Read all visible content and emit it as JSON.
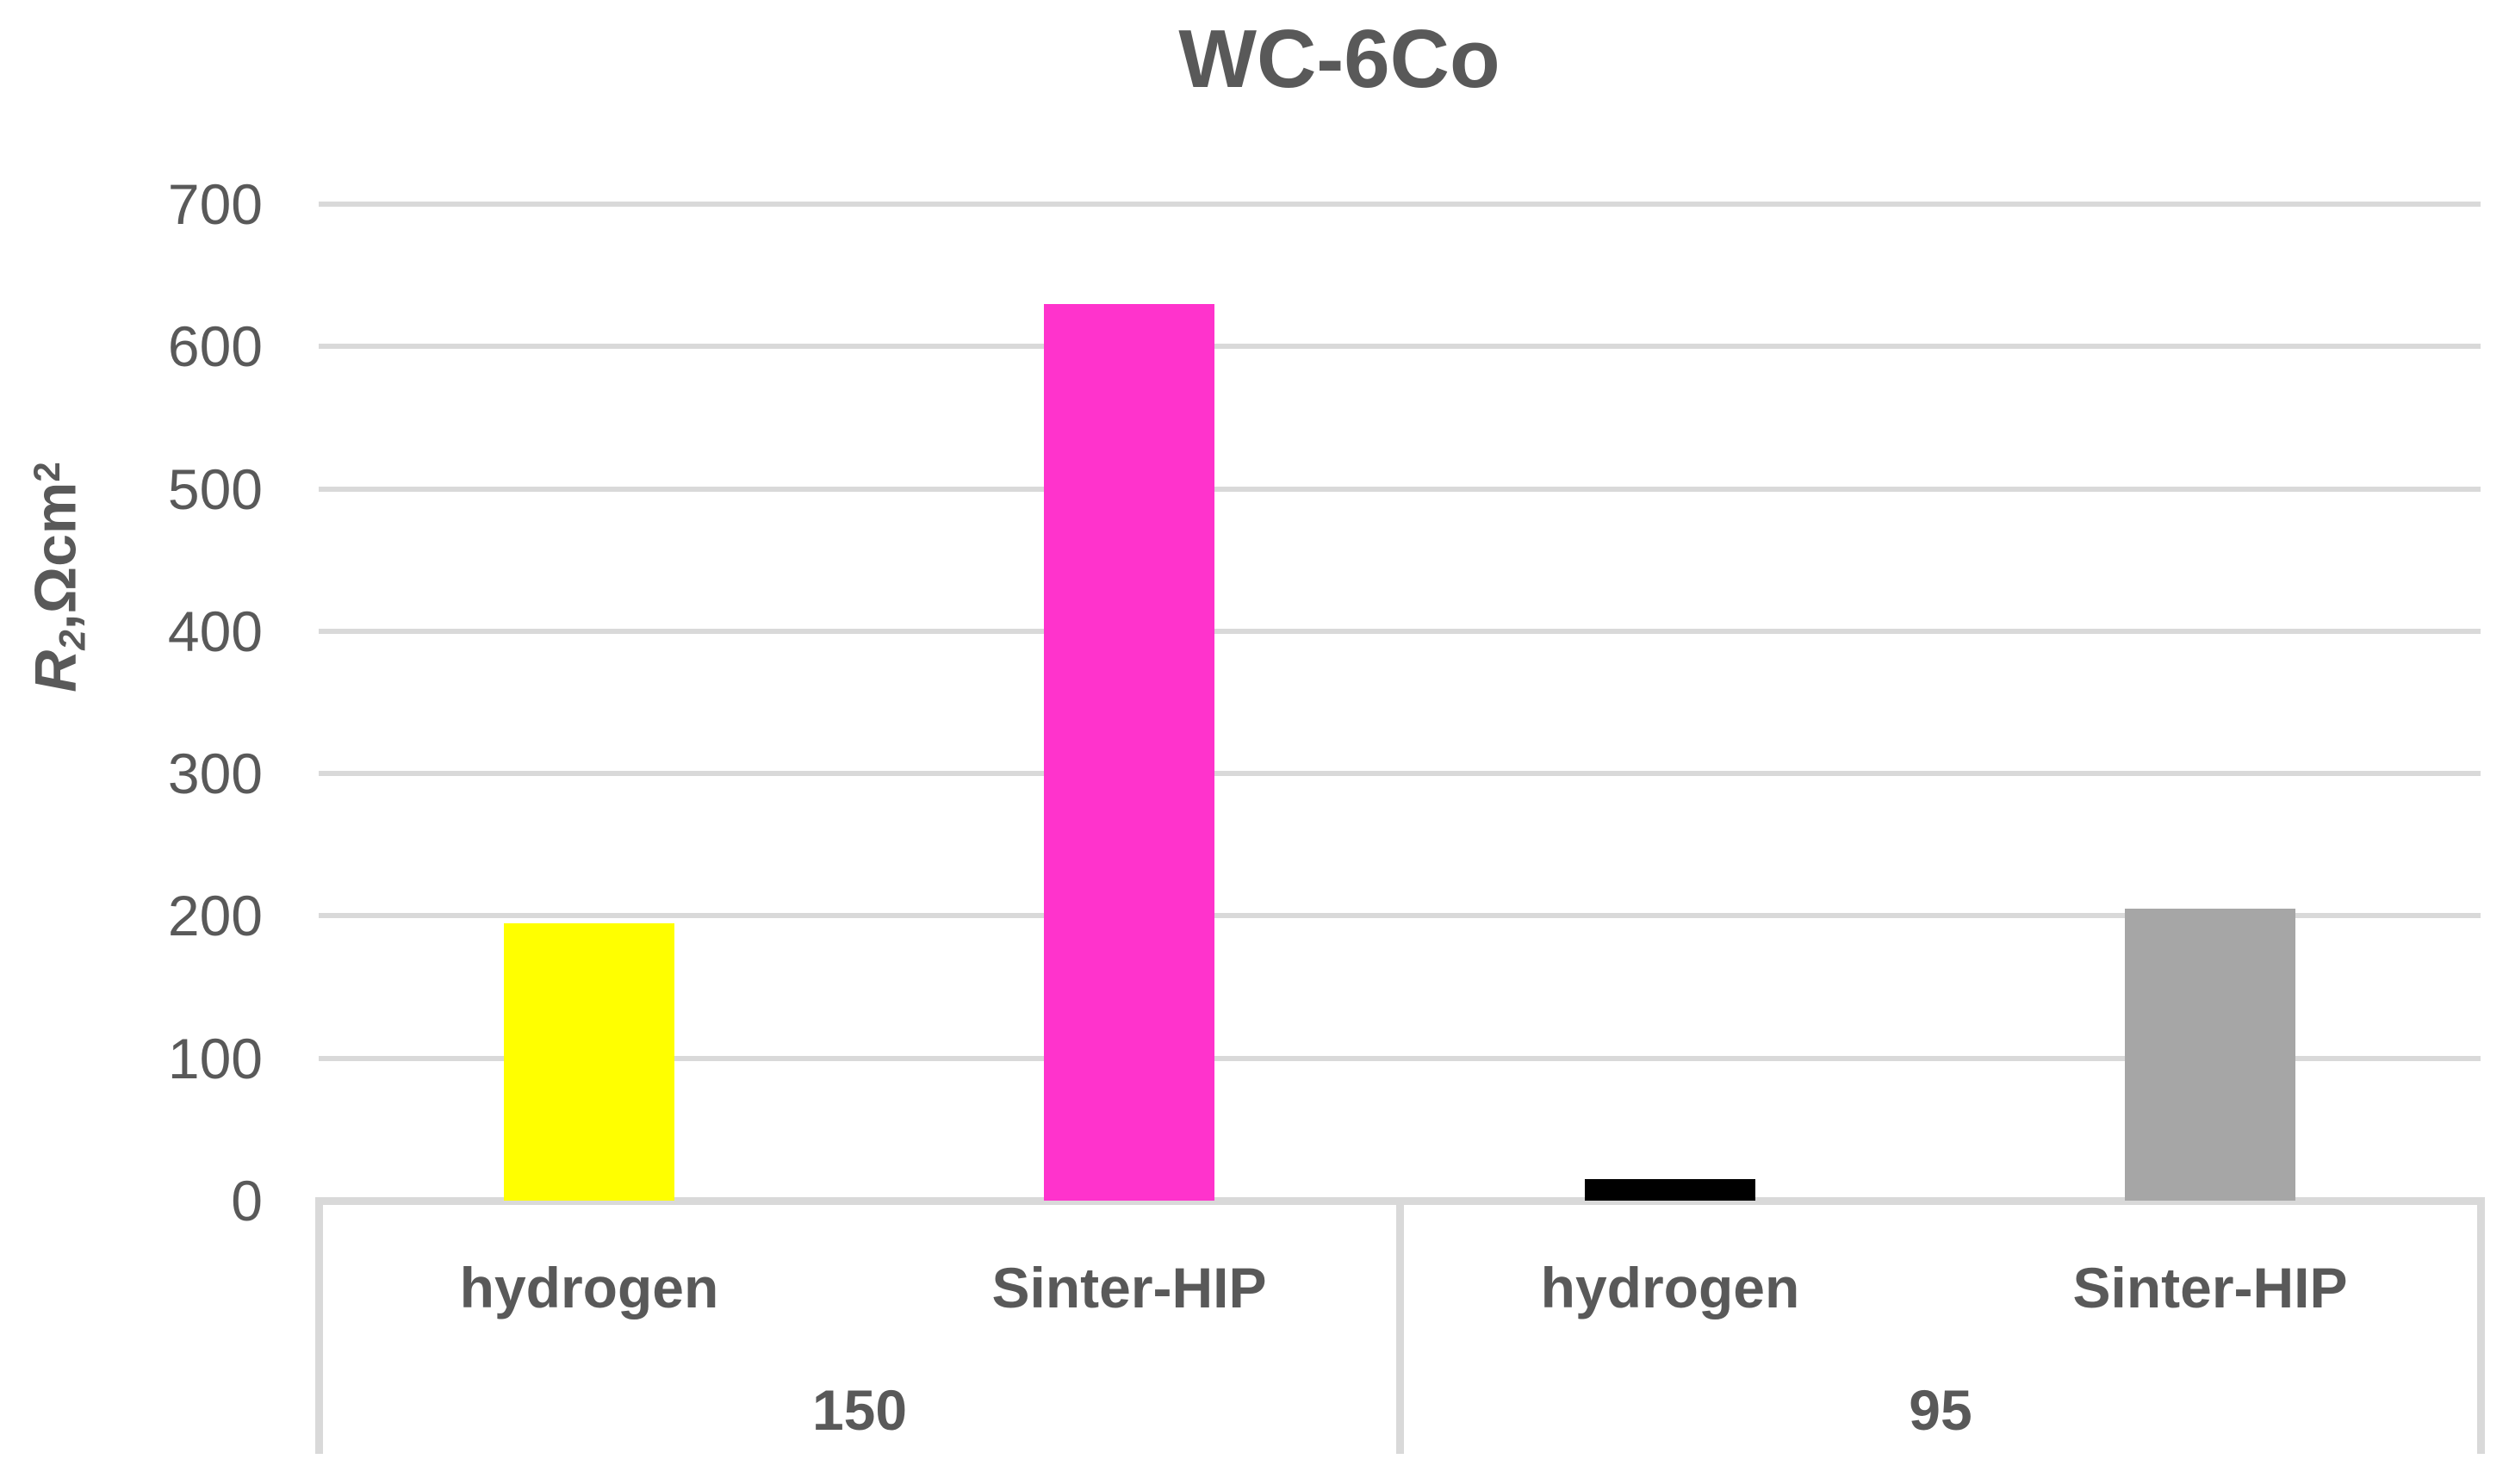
{
  "chart_data": {
    "type": "bar",
    "title": "WC-6Co",
    "ylabel": "R₂,Ωcm²",
    "ylabel_parts": {
      "base": "R",
      "sub": "2",
      "mid": ",Ωcm",
      "sup": "2"
    },
    "xlabel": "",
    "ylim": [
      0,
      700
    ],
    "yticks": [
      0,
      100,
      200,
      300,
      400,
      500,
      600,
      700
    ],
    "grid": "horizontal",
    "legend": "none",
    "bar_categories": [
      "hydrogen",
      "Sinter-HIP"
    ],
    "group_categories": [
      "150",
      "95"
    ],
    "groups": [
      {
        "label": "150",
        "bars": [
          {
            "category": "hydrogen",
            "value": 195,
            "color": "#FFFF00"
          },
          {
            "category": "Sinter-HIP",
            "value": 630,
            "color": "#FF33CC"
          }
        ]
      },
      {
        "label": "95",
        "bars": [
          {
            "category": "hydrogen",
            "value": 15,
            "color": "#000000"
          },
          {
            "category": "Sinter-HIP",
            "value": 205,
            "color": "#A6A6A6"
          }
        ]
      }
    ],
    "colors": {
      "text": "#595959",
      "gridline": "#D9D9D9"
    }
  }
}
